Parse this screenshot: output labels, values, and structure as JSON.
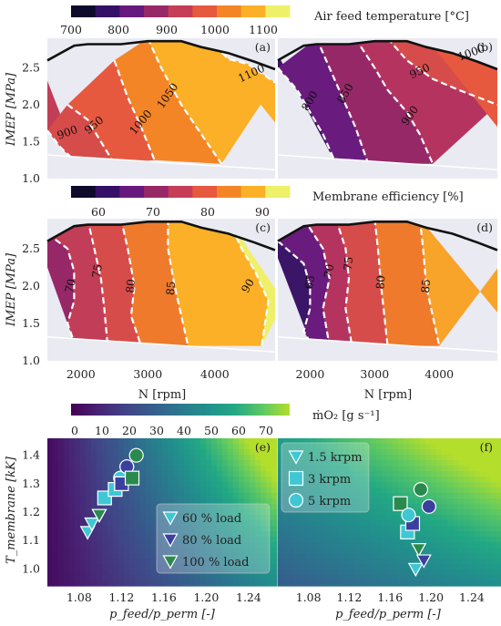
{
  "chart_data": [
    {
      "type": "heatmap",
      "panel": "(a)",
      "colorbar_label": "Air feed temperature [°C]",
      "colorbar_ticks": [
        "700",
        "800",
        "900",
        "1000",
        "1100"
      ],
      "colorbar_range": [
        700,
        1150
      ],
      "ylabel": "IMEP [MPa]",
      "yticks": [
        "1.0",
        "1.5",
        "2.0",
        "2.5"
      ],
      "ylim": [
        1.0,
        2.9
      ],
      "xlim": [
        1500,
        4900
      ],
      "contour_labels": [
        "900",
        "950",
        "1000",
        "1050",
        "1100"
      ]
    },
    {
      "type": "heatmap",
      "panel": "(b)",
      "colorbar_range": [
        700,
        1150
      ],
      "ylim": [
        1.0,
        2.9
      ],
      "xlim": [
        1500,
        4900
      ],
      "contour_labels": [
        "800",
        "850",
        "900",
        "950",
        "1000"
      ]
    },
    {
      "type": "heatmap",
      "panel": "(c)",
      "colorbar_label": "Membrane efficiency [%]",
      "colorbar_ticks": [
        "60",
        "70",
        "80",
        "90"
      ],
      "colorbar_range": [
        55,
        95
      ],
      "ylabel": "IMEP [MPa]",
      "yticks": [
        "1.0",
        "1.5",
        "2.0",
        "2.5"
      ],
      "xlabel": "N [rpm]",
      "xticks": [
        "2000",
        "3000",
        "4000"
      ],
      "ylim": [
        1.0,
        2.9
      ],
      "xlim": [
        1500,
        4900
      ],
      "contour_labels": [
        "70",
        "75",
        "80",
        "85",
        "90"
      ]
    },
    {
      "type": "heatmap",
      "panel": "(d)",
      "xlabel": "N [rpm]",
      "xticks": [
        "2000",
        "3000",
        "4000"
      ],
      "ylim": [
        1.0,
        2.9
      ],
      "xlim": [
        1500,
        4900
      ],
      "contour_labels": [
        "65",
        "70",
        "75",
        "80",
        "85"
      ]
    },
    {
      "type": "scatter",
      "panel": "(e)",
      "colorbar_label": "ṁO₂ [g s⁻¹]",
      "colorbar_ticks": [
        "0",
        "10",
        "20",
        "30",
        "40",
        "50",
        "60",
        "70"
      ],
      "colorbar_range": [
        -5,
        75
      ],
      "ylabel": "T_membrane [kK]",
      "yticks": [
        "1.0",
        "1.1",
        "1.2",
        "1.3",
        "1.4"
      ],
      "ylim": [
        0.95,
        1.46
      ],
      "xlabel": "p_feed/p_perm [-]",
      "xticks": [
        "1.08",
        "1.12",
        "1.16",
        "1.20",
        "1.24"
      ],
      "xlim": [
        1.05,
        1.265
      ],
      "legend": [
        "60 % load",
        "80 % load",
        "100 % load"
      ],
      "series": [
        {
          "name": "60 % load",
          "marker": "triangle-down",
          "points": [
            [
              1.088,
              1.13,
              "#3fc7d4"
            ],
            [
              1.092,
              1.16,
              "#3fc7d4"
            ],
            [
              1.099,
              1.19,
              "#3fc7d4"
            ]
          ]
        },
        {
          "name": "80 % load",
          "marker": "square",
          "points": [
            [
              1.104,
              1.25,
              "#3fc7d4"
            ],
            [
              1.114,
              1.28,
              "#3fc7d4"
            ],
            [
              1.12,
              1.3,
              "#3fc7d4"
            ]
          ]
        },
        {
          "name": "100 % load",
          "marker": "circle",
          "points": [
            [
              1.119,
              1.32,
              "#3fc7d4"
            ],
            [
              1.125,
              1.36,
              "#3fc7d4"
            ],
            [
              1.134,
              1.4,
              "#2a8a4e"
            ]
          ]
        }
      ],
      "extra_markers": [
        {
          "x": 1.099,
          "y": 1.19,
          "marker": "triangle-down",
          "color": "#2a8a4e"
        },
        {
          "x": 1.13,
          "y": 1.32,
          "marker": "square",
          "color": "#2a8a4e"
        },
        {
          "x": 1.12,
          "y": 1.3,
          "marker": "square",
          "color": "#3b3f9e"
        },
        {
          "x": 1.125,
          "y": 1.36,
          "marker": "circle",
          "color": "#3b3f9e"
        }
      ]
    },
    {
      "type": "scatter",
      "panel": "(f)",
      "xlabel": "p_feed/p_perm [-]",
      "xticks": [
        "1.08",
        "1.12",
        "1.16",
        "1.20",
        "1.24"
      ],
      "xlim": [
        1.05,
        1.265
      ],
      "ylim": [
        0.95,
        1.46
      ],
      "legend": [
        "1.5 krpm",
        "3 krpm",
        "5 krpm"
      ],
      "series": [
        {
          "name": "1.5 krpm",
          "marker": "triangle-down",
          "points": [
            [
              1.185,
              1.0,
              "#3fc7d4"
            ],
            [
              1.188,
              1.07,
              "#2a8a4e"
            ],
            [
              1.193,
              1.03,
              "#3b3f9e"
            ]
          ]
        },
        {
          "name": "3 krpm",
          "marker": "square",
          "points": [
            [
              1.17,
              1.23,
              "#2a8a4e"
            ],
            [
              1.177,
              1.13,
              "#3fc7d4"
            ],
            [
              1.182,
              1.16,
              "#3b3f9e"
            ]
          ]
        },
        {
          "name": "5 krpm",
          "marker": "circle",
          "points": [
            [
              1.178,
              1.19,
              "#3fc7d4"
            ],
            [
              1.19,
              1.28,
              "#2a8a4e"
            ],
            [
              1.198,
              1.22,
              "#3b3f9e"
            ]
          ]
        }
      ]
    }
  ]
}
